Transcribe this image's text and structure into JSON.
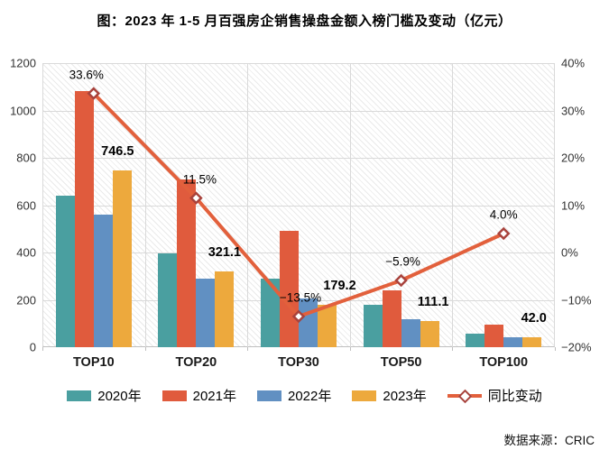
{
  "title": "图：2023 年 1-5 月百强房企销售操盘金额入榜门槛及变动（亿元）",
  "source": "数据来源：CRIC",
  "colors": {
    "series_2020": "#4A9FA0",
    "series_2021": "#E05B3D",
    "series_2022": "#6190C2",
    "series_2023": "#EDA93D",
    "line": "#E2603C",
    "marker_border": "#A8423C",
    "marker_fill": "#FFFFFF",
    "gridline": "#D9D9D9",
    "axis_text": "#333333"
  },
  "chart_data": {
    "type": "bar",
    "title": "图：2023 年 1-5 月百强房企销售操盘金额入榜门槛及变动（亿元）",
    "categories": [
      "TOP10",
      "TOP20",
      "TOP30",
      "TOP50",
      "TOP100"
    ],
    "series": [
      {
        "name": "2020年",
        "color": "#4A9FA0",
        "values": [
          640,
          398,
          290,
          178,
          58
        ]
      },
      {
        "name": "2021年",
        "color": "#E05B3D",
        "values": [
          1082,
          710,
          493,
          240,
          97
        ]
      },
      {
        "name": "2022年",
        "color": "#6190C2",
        "values": [
          558.8,
          288.0,
          207.0,
          118.1,
          40.4
        ]
      },
      {
        "name": "2023年",
        "color": "#EDA93D",
        "values": [
          746.5,
          321.1,
          179.2,
          111.1,
          42.0
        ],
        "labels": [
          "746.5",
          "321.1",
          "179.2",
          "111.1",
          "42.0"
        ]
      }
    ],
    "line_series": {
      "name": "同比变动",
      "color": "#E2603C",
      "axis": "right",
      "values": [
        33.6,
        11.5,
        -13.5,
        -5.9,
        4.0
      ],
      "labels": [
        "33.6%",
        "11.5%",
        "−13.5%",
        "−5.9%",
        "4.0%"
      ]
    },
    "left_axis": {
      "min": 0,
      "max": 1200,
      "step": 200,
      "ticks": [
        "1200",
        "1000",
        "800",
        "600",
        "400",
        "200",
        "0"
      ]
    },
    "right_axis": {
      "min": -20,
      "max": 40,
      "step": 10,
      "ticks": [
        "40%",
        "30%",
        "20%",
        "10%",
        "0%",
        "−10%",
        "−20%"
      ]
    },
    "legend_position": "bottom",
    "grid": true,
    "plot_background": "diagonal-hatch"
  }
}
